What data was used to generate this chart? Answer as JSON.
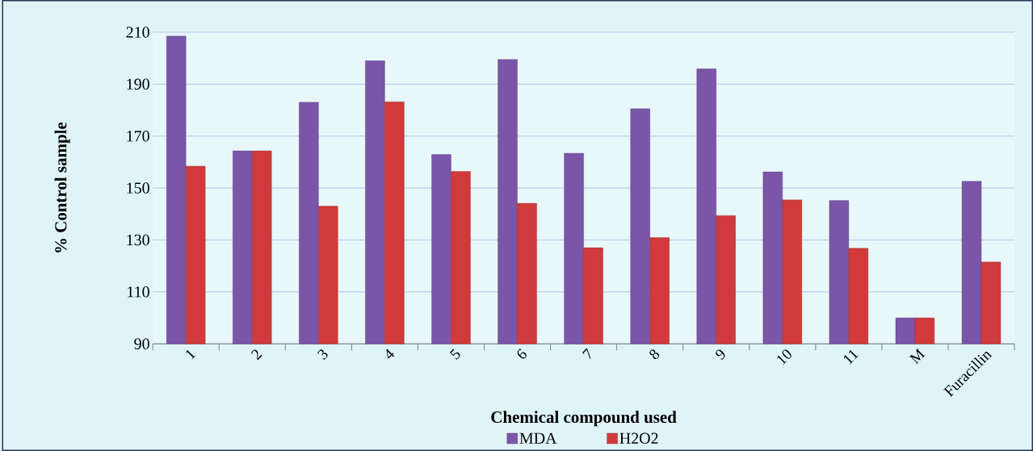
{
  "chart_data": {
    "type": "bar",
    "xlabel": "Chemical compound used",
    "ylabel": "% Control sample",
    "categories": [
      "1",
      "2",
      "3",
      "4",
      "5",
      "6",
      "7",
      "8",
      "9",
      "10",
      "11",
      "M",
      "Furacillin"
    ],
    "series": [
      {
        "name": "MDA",
        "color": "#7b55a8",
        "values": [
          208.5,
          164.3,
          183.0,
          199.0,
          162.9,
          199.5,
          163.4,
          180.5,
          195.9,
          156.2,
          145.2,
          100.0,
          152.6
        ]
      },
      {
        "name": "H2O2",
        "color": "#d03a3a",
        "values": [
          158.4,
          164.3,
          143.0,
          183.2,
          156.4,
          144.1,
          127.0,
          130.9,
          139.4,
          145.4,
          126.8,
          100.0,
          121.5
        ]
      }
    ],
    "ylim": [
      90,
      210
    ],
    "yticks": [
      90,
      110,
      130,
      150,
      170,
      190,
      210
    ],
    "grid": "y",
    "legend": "bottom"
  }
}
